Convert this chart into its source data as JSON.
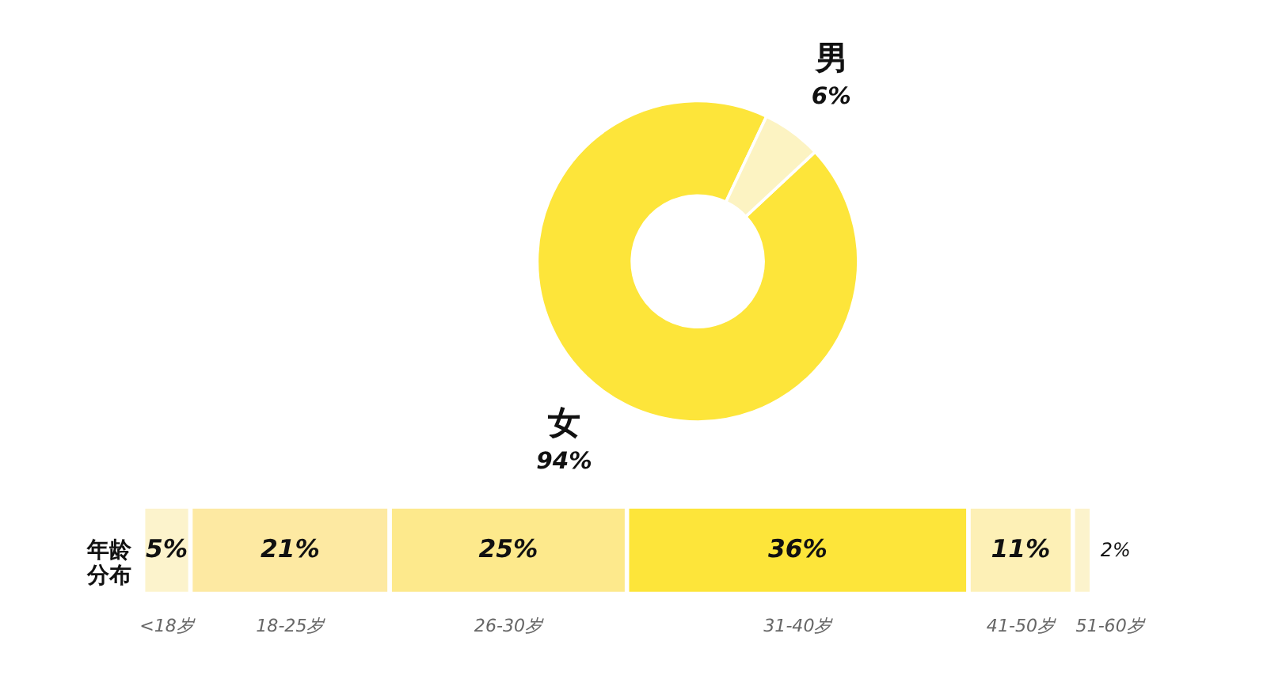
{
  "chart_data": [
    {
      "type": "donut",
      "categories": [
        "女",
        "男"
      ],
      "values": [
        94,
        6
      ],
      "colors": [
        "#fde53a",
        "#fcf3c2"
      ],
      "value_labels": [
        "94%",
        "6%"
      ]
    },
    {
      "type": "bar",
      "orientation": "horizontal",
      "stacked": true,
      "ylabel": "年龄分布",
      "categories": [
        null
      ],
      "series": [
        {
          "name": "<18岁",
          "color": "#fcf3cc",
          "values": [
            5
          ],
          "value_labels": [
            "5%"
          ]
        },
        {
          "name": "18-25岁",
          "color": "#fde9a2",
          "values": [
            21
          ],
          "value_labels": [
            "21%"
          ]
        },
        {
          "name": "26-30岁",
          "color": "#fde98c",
          "values": [
            25
          ],
          "value_labels": [
            "25%"
          ]
        },
        {
          "name": "31-40岁",
          "color": "#fde53a",
          "values": [
            36
          ],
          "value_labels": [
            "36%"
          ]
        },
        {
          "name": "41-50岁",
          "color": "#fdf0b6",
          "values": [
            11
          ],
          "value_labels": [
            "11%"
          ]
        },
        {
          "name": "51-60岁",
          "color": "#fcf3cc",
          "values": [
            2
          ],
          "value_labels": [
            "2%"
          ]
        }
      ]
    }
  ]
}
